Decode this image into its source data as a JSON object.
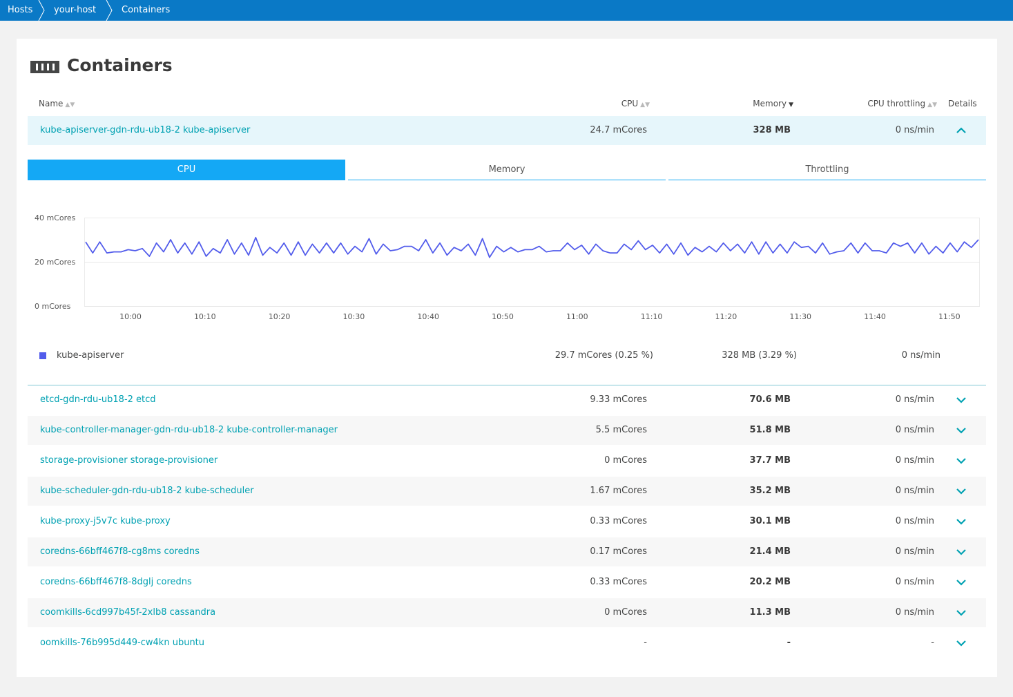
{
  "breadcrumb": [
    "Hosts",
    "your-host",
    "Containers"
  ],
  "page": {
    "title": "Containers",
    "title_icon": "containers-icon"
  },
  "table": {
    "columns": {
      "name": "Name",
      "cpu": "CPU",
      "memory": "Memory",
      "throttling": "CPU throttling",
      "details": "Details"
    },
    "sort_column": "memory",
    "rows": [
      {
        "name": "kube-apiserver-gdn-rdu-ub18-2 kube-apiserver",
        "cpu": "24.7 mCores",
        "memory": "328 MB",
        "throttling": "0 ns/min",
        "expanded": true
      },
      {
        "name": "etcd-gdn-rdu-ub18-2 etcd",
        "cpu": "9.33 mCores",
        "memory": "70.6 MB",
        "throttling": "0 ns/min"
      },
      {
        "name": "kube-controller-manager-gdn-rdu-ub18-2 kube-controller-manager",
        "cpu": "5.5 mCores",
        "memory": "51.8 MB",
        "throttling": "0 ns/min"
      },
      {
        "name": "storage-provisioner storage-provisioner",
        "cpu": "0 mCores",
        "memory": "37.7 MB",
        "throttling": "0 ns/min"
      },
      {
        "name": "kube-scheduler-gdn-rdu-ub18-2 kube-scheduler",
        "cpu": "1.67 mCores",
        "memory": "35.2 MB",
        "throttling": "0 ns/min"
      },
      {
        "name": "kube-proxy-j5v7c kube-proxy",
        "cpu": "0.33 mCores",
        "memory": "30.1 MB",
        "throttling": "0 ns/min"
      },
      {
        "name": "coredns-66bff467f8-cg8ms coredns",
        "cpu": "0.17 mCores",
        "memory": "21.4 MB",
        "throttling": "0 ns/min"
      },
      {
        "name": "coredns-66bff467f8-8dglj coredns",
        "cpu": "0.33 mCores",
        "memory": "20.2 MB",
        "throttling": "0 ns/min"
      },
      {
        "name": "coomkills-6cd997b45f-2xlb8 cassandra",
        "cpu": "0 mCores",
        "memory": "11.3 MB",
        "throttling": "0 ns/min"
      },
      {
        "name": "oomkills-76b995d449-cw4kn ubuntu",
        "cpu": "-",
        "memory": "-",
        "throttling": "-"
      }
    ]
  },
  "details": {
    "tabs": [
      "CPU",
      "Memory",
      "Throttling"
    ],
    "active_tab": "CPU",
    "legend": {
      "name": "kube-apiserver",
      "cpu": "29.7 mCores (0.25 %)",
      "memory": "328 MB (3.29 %)",
      "throttling": "0 ns/min",
      "color": "#525ceb"
    }
  },
  "colors": {
    "topbar": "#0a79c6",
    "accent": "#14a8f5",
    "link": "#00a1b2",
    "series": "#525ceb",
    "expanded_row": "#e6f6fb"
  },
  "chart_data": {
    "type": "line",
    "ylim": [
      0,
      40
    ],
    "yticks": [
      "0 mCores",
      "20 mCores",
      "40 mCores"
    ],
    "xticks": [
      "10:00",
      "10:10",
      "10:20",
      "10:30",
      "10:40",
      "10:50",
      "11:00",
      "11:10",
      "11:20",
      "11:30",
      "11:40",
      "11:50"
    ],
    "grid": true,
    "series": [
      {
        "name": "kube-apiserver",
        "values": [
          29,
          24,
          29,
          24,
          24.5,
          24.5,
          25.5,
          25,
          26,
          22.5,
          28.5,
          24.5,
          30,
          24,
          28.5,
          23.5,
          29,
          22.5,
          26,
          24,
          30,
          23.5,
          28.5,
          23,
          31,
          23,
          26.5,
          24,
          28.5,
          23,
          29,
          23,
          28,
          24,
          28.5,
          24,
          28.5,
          23.5,
          27,
          24.5,
          30.5,
          23.5,
          28,
          25,
          25.5,
          27,
          27,
          25,
          30,
          24,
          28.5,
          23,
          26.5,
          25,
          28,
          23,
          30.5,
          22,
          27,
          24.5,
          26.5,
          24.5,
          25.5,
          25.5,
          27,
          24.5,
          25,
          25,
          28.5,
          25.5,
          27.5,
          23.5,
          28,
          25,
          24,
          24,
          28,
          25.5,
          29.5,
          25.5,
          27.5,
          24,
          28,
          23.5,
          28.5,
          23,
          26.5,
          24.5,
          27,
          24.5,
          28.5,
          25,
          28,
          24,
          29,
          23.5,
          29,
          24,
          28,
          24,
          29,
          26.5,
          27,
          24,
          28.5,
          23.5,
          24.5,
          25,
          28.5,
          24,
          28.5,
          25,
          25,
          24,
          28.5,
          27,
          28.5,
          24,
          28.5,
          23.5,
          27,
          24,
          28.5,
          24.5,
          29,
          26.5,
          30
        ]
      }
    ]
  }
}
